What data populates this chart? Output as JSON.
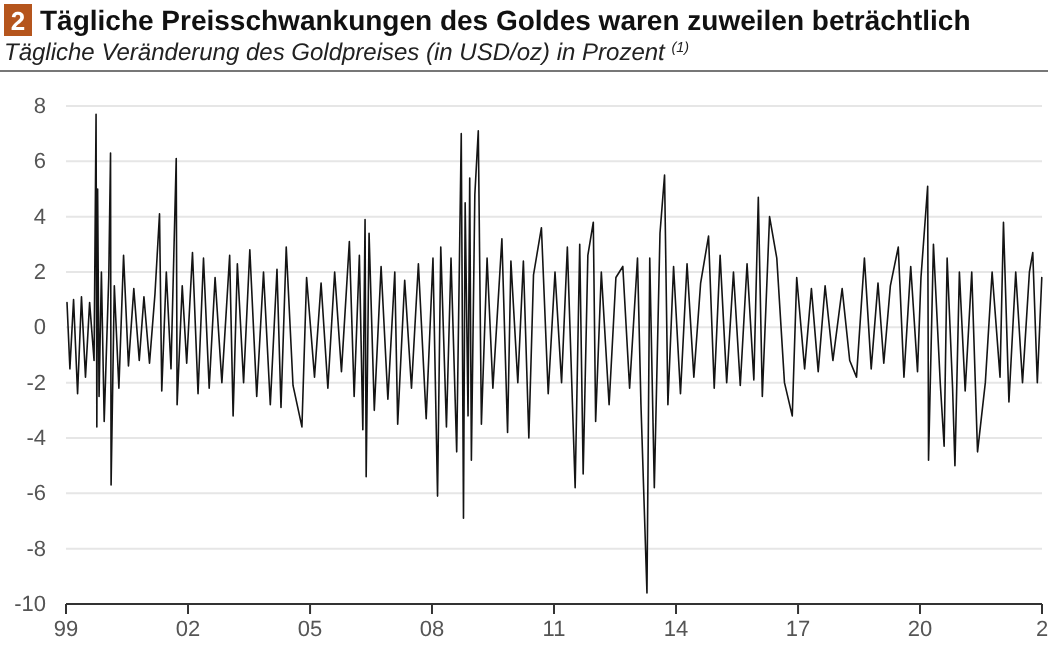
{
  "chart_data": {
    "type": "line",
    "title": "Tägliche Preisschwankungen des Goldes waren zuweilen beträchtlich",
    "subtitle": "Tägliche Veränderung des Goldpreises (in USD/oz) in Prozent $^{(1)}$",
    "annotations": [
      "2"
    ],
    "xlim": [
      "1999-01-01",
      "2023-01-01"
    ],
    "xticks": [
      {
        "value": "1999-01-01",
        "label": "99"
      },
      {
        "value": "2002-01-01",
        "label": "02"
      },
      {
        "value": "2005-01-01",
        "label": "05"
      },
      {
        "value": "2008-01-01",
        "label": "08"
      },
      {
        "value": "2011-01-01",
        "label": "11"
      },
      {
        "value": "2014-01-01",
        "label": "14"
      },
      {
        "value": "2017-01-01",
        "label": "17"
      },
      {
        "value": "2020-01-01",
        "label": "20"
      },
      {
        "value": "2023-01-01",
        "label": "2"
      }
    ],
    "ylim": [
      -10,
      8
    ],
    "yticks": [
      -10,
      -8,
      -6,
      -4,
      -2,
      0,
      2,
      4,
      6,
      8
    ],
    "grid": "y",
    "marker": "none",
    "line_style": "solid",
    "x": [
      "1999-01-10",
      "1999-02-05",
      "1999-03-10",
      "1999-04-15",
      "1999-05-20",
      "1999-06-25",
      "1999-08-01",
      "1999-09-10",
      "1999-09-28",
      "1999-10-05",
      "1999-10-12",
      "1999-10-25",
      "1999-11-15",
      "1999-12-10",
      "2000-01-20",
      "2000-02-05",
      "2000-02-10",
      "2000-03-10",
      "2000-04-20",
      "2000-06-01",
      "2000-07-15",
      "2000-09-01",
      "2000-10-20",
      "2000-12-01",
      "2001-01-20",
      "2001-03-10",
      "2001-04-20",
      "2001-05-10",
      "2001-06-20",
      "2001-08-01",
      "2001-09-17",
      "2001-09-25",
      "2001-11-10",
      "2001-12-20",
      "2002-02-10",
      "2002-04-01",
      "2002-05-20",
      "2002-07-10",
      "2002-09-01",
      "2002-11-01",
      "2003-01-10",
      "2003-02-10",
      "2003-03-20",
      "2003-05-15",
      "2003-07-10",
      "2003-09-10",
      "2003-11-10",
      "2004-01-10",
      "2004-03-10",
      "2004-04-15",
      "2004-06-01",
      "2004-08-01",
      "2004-10-20",
      "2004-12-01",
      "2005-02-10",
      "2005-04-10",
      "2005-06-10",
      "2005-08-10",
      "2005-10-10",
      "2005-12-20",
      "2006-02-01",
      "2006-03-20",
      "2006-04-20",
      "2006-05-10",
      "2006-05-20",
      "2006-06-15",
      "2006-08-01",
      "2006-10-01",
      "2006-12-01",
      "2007-02-01",
      "2007-02-27",
      "2007-05-01",
      "2007-07-01",
      "2007-09-01",
      "2007-11-10",
      "2008-01-10",
      "2008-02-20",
      "2008-03-20",
      "2008-05-10",
      "2008-06-20",
      "2008-08-10",
      "2008-09-20",
      "2008-10-10",
      "2008-10-25",
      "2008-11-20",
      "2008-12-05",
      "2008-12-20",
      "2009-01-20",
      "2009-02-20",
      "2009-03-20",
      "2009-05-10",
      "2009-07-01",
      "2009-09-20",
      "2009-11-10",
      "2009-12-10",
      "2010-02-10",
      "2010-04-01",
      "2010-05-20",
      "2010-07-01",
      "2010-09-10",
      "2010-11-10",
      "2011-01-10",
      "2011-03-10",
      "2011-05-01",
      "2011-07-10",
      "2011-08-20",
      "2011-09-20",
      "2011-11-01",
      "2011-12-20",
      "2012-01-10",
      "2012-03-01",
      "2012-05-10",
      "2012-07-10",
      "2012-09-10",
      "2012-11-10",
      "2013-01-20",
      "2013-02-20",
      "2013-04-15",
      "2013-05-10",
      "2013-06-20",
      "2013-08-10",
      "2013-09-20",
      "2013-10-20",
      "2013-12-10",
      "2014-02-10",
      "2014-04-10",
      "2014-06-10",
      "2014-08-10",
      "2014-10-20",
      "2014-12-10",
      "2015-02-01",
      "2015-04-01",
      "2015-06-01",
      "2015-08-01",
      "2015-10-01",
      "2015-12-01",
      "2016-01-10",
      "2016-02-15",
      "2016-04-20",
      "2016-06-24",
      "2016-09-01",
      "2016-11-10",
      "2016-12-20",
      "2017-03-01",
      "2017-05-01",
      "2017-07-01",
      "2017-09-01",
      "2017-11-10",
      "2018-02-01",
      "2018-04-10",
      "2018-06-10",
      "2018-08-20",
      "2018-10-20",
      "2018-12-20",
      "2019-02-10",
      "2019-04-10",
      "2019-06-20",
      "2019-08-10",
      "2019-10-10",
      "2019-12-10",
      "2020-01-10",
      "2020-03-10",
      "2020-03-18",
      "2020-05-01",
      "2020-07-01",
      "2020-08-05",
      "2020-09-01",
      "2020-10-20",
      "2020-11-10",
      "2020-12-20",
      "2021-02-10",
      "2021-04-10",
      "2021-06-01",
      "2021-08-10",
      "2021-10-10",
      "2021-12-20",
      "2022-01-20",
      "2022-03-10",
      "2022-05-10",
      "2022-07-10",
      "2022-09-10",
      "2022-10-10",
      "2022-11-20",
      "2022-12-30"
    ],
    "series": [
      {
        "color": "#141414",
        "values": [
          0.9,
          -1.5,
          1.0,
          -2.4,
          1.1,
          -1.8,
          0.9,
          -1.2,
          7.7,
          -3.6,
          5.0,
          -2.5,
          2.0,
          -3.4,
          1.8,
          6.3,
          -5.7,
          1.5,
          -2.2,
          2.6,
          -1.4,
          1.4,
          -1.2,
          1.1,
          -1.3,
          1.2,
          4.1,
          -2.3,
          2.0,
          -1.5,
          6.1,
          -2.8,
          1.5,
          -1.3,
          2.7,
          -2.4,
          2.5,
          -2.2,
          1.8,
          -2.0,
          2.6,
          -3.2,
          2.3,
          -2.0,
          2.8,
          -2.5,
          2.0,
          -2.8,
          2.1,
          -2.9,
          2.9,
          -2.1,
          -3.6,
          1.8,
          -1.8,
          1.6,
          -2.2,
          2.0,
          -1.6,
          3.1,
          -2.5,
          2.6,
          -3.7,
          3.9,
          -5.4,
          3.4,
          -3.0,
          2.2,
          -2.6,
          2.0,
          -3.5,
          1.7,
          -2.2,
          2.3,
          -3.3,
          2.5,
          -6.1,
          2.9,
          -3.6,
          2.5,
          -4.5,
          7.0,
          -6.9,
          4.5,
          -3.2,
          5.4,
          -4.8,
          4.8,
          7.1,
          -3.5,
          2.5,
          -2.2,
          3.2,
          -3.8,
          2.4,
          -2.0,
          2.4,
          -4.0,
          1.9,
          3.6,
          -2.4,
          2.0,
          -2.0,
          2.9,
          -5.8,
          3.0,
          -5.3,
          2.6,
          3.8,
          -3.4,
          2.0,
          -2.8,
          1.8,
          2.2,
          -2.2,
          2.5,
          -2.8,
          -9.6,
          2.5,
          -5.8,
          3.4,
          5.5,
          -2.8,
          2.2,
          -2.4,
          2.3,
          -1.8,
          1.6,
          3.3,
          -2.2,
          2.6,
          -2.0,
          2.0,
          -2.1,
          2.3,
          -1.9,
          4.7,
          -2.5,
          4.0,
          2.5,
          -2.0,
          -3.2,
          1.8,
          -1.5,
          1.4,
          -1.6,
          1.5,
          -1.2,
          1.4,
          -1.2,
          -1.8,
          2.5,
          -1.5,
          1.6,
          -1.3,
          1.5,
          2.9,
          -1.8,
          2.2,
          -1.6,
          1.8,
          5.1,
          -4.8,
          3.0,
          -2.0,
          -4.3,
          2.5,
          -2.2,
          -5.0,
          2.0,
          -2.3,
          2.0,
          -4.5,
          -2.0,
          2.0,
          -1.8,
          3.8,
          -2.7,
          2.0,
          -2.0,
          2.0,
          2.7,
          -2.0,
          1.8
        ]
      }
    ]
  }
}
